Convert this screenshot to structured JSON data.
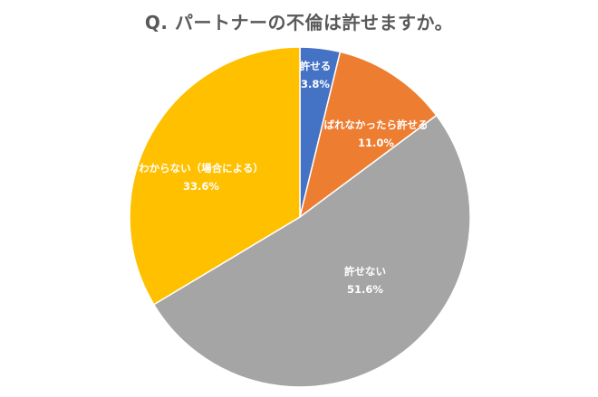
{
  "chart_data": {
    "type": "pie",
    "title": "Q. パートナーの不倫は許せますか。",
    "slices": [
      {
        "category": "許せる",
        "value": 3.8,
        "label": "3.8%",
        "color": "#4472C4"
      },
      {
        "category": "ばれなかったら許せる",
        "value": 11.0,
        "label": "11.0%",
        "color": "#ED7D31"
      },
      {
        "category": "許せない",
        "value": 51.6,
        "label": "51.6%",
        "color": "#A5A5A5"
      },
      {
        "category": "わからない（場合による）",
        "value": 33.6,
        "label": "33.6%",
        "color": "#FFC000"
      }
    ],
    "start_angle": "12 o'clock",
    "direction": "clockwise",
    "data_labels": "category and percent inside slices"
  }
}
